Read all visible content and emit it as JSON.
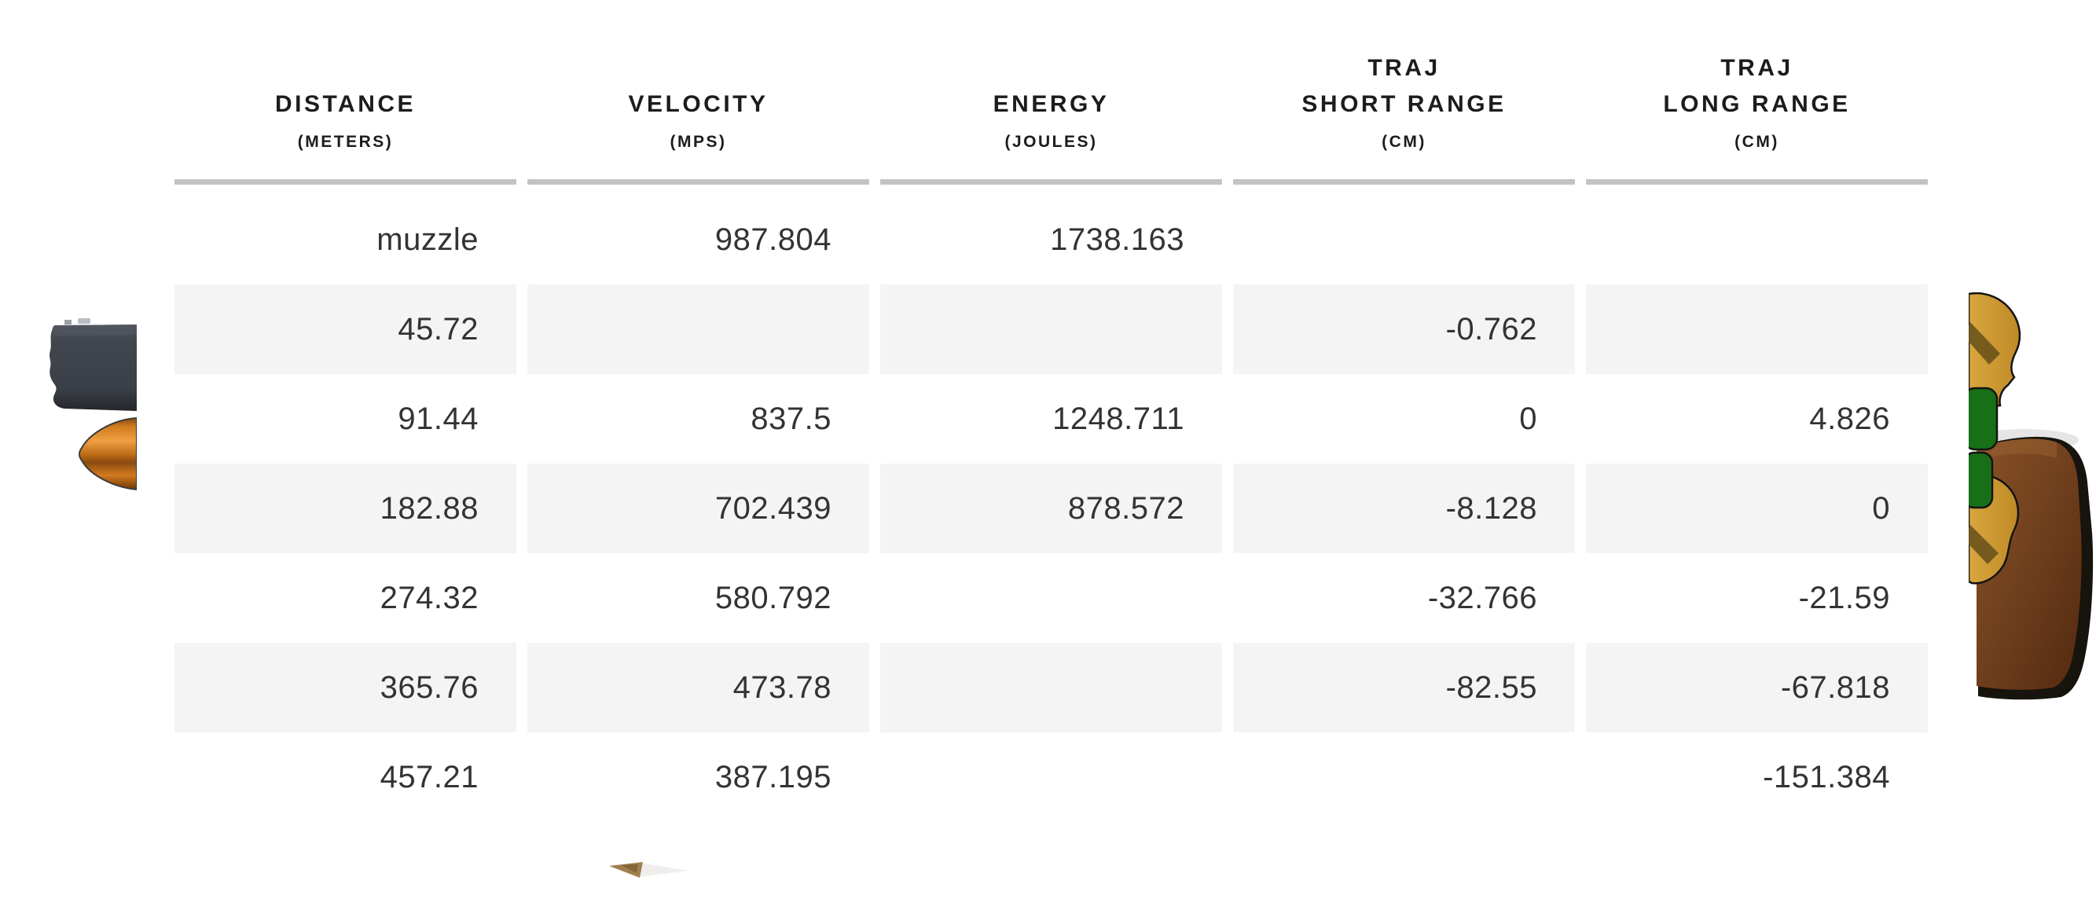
{
  "table": {
    "columns": [
      {
        "key": "distance",
        "lines": [
          "DISTANCE"
        ],
        "unit": "(METERS)"
      },
      {
        "key": "velocity",
        "lines": [
          "VELOCITY"
        ],
        "unit": "(MPS)"
      },
      {
        "key": "energy",
        "lines": [
          "ENERGY"
        ],
        "unit": "(JOULES)"
      },
      {
        "key": "traj-short-range",
        "lines": [
          "TRAJ",
          "SHORT RANGE"
        ],
        "unit": "(CM)"
      },
      {
        "key": "traj-long-range",
        "lines": [
          "TRAJ",
          "LONG RANGE"
        ],
        "unit": "(CM)"
      }
    ],
    "rows": [
      {
        "shaded": false,
        "cells": [
          "muzzle",
          "987.804",
          "1738.163",
          "",
          ""
        ]
      },
      {
        "shaded": true,
        "cells": [
          "45.72",
          "",
          "",
          "-0.762",
          ""
        ]
      },
      {
        "shaded": false,
        "cells": [
          "91.44",
          "837.5",
          "1248.711",
          "0",
          "4.826"
        ]
      },
      {
        "shaded": true,
        "cells": [
          "182.88",
          "702.439",
          "878.572",
          "-8.128",
          "0"
        ]
      },
      {
        "shaded": false,
        "cells": [
          "274.32",
          "580.792",
          "",
          "-32.766",
          "-21.59"
        ]
      },
      {
        "shaded": true,
        "cells": [
          "365.76",
          "473.78",
          "",
          "-82.55",
          "-67.818"
        ]
      },
      {
        "shaded": false,
        "cells": [
          "457.21",
          "387.195",
          "",
          "",
          "-151.384"
        ]
      }
    ]
  },
  "colors": {
    "row_shade": "#f4f4f4",
    "header_rule": "#c3c3c3",
    "data_text": "#333333",
    "header_text": "#1c1c1c"
  },
  "decor": {
    "fragments": [
      "rifle-receiver-fragment",
      "orange-forend-tip-fragment",
      "gold-badge-fragment",
      "rifle-stock-fragment",
      "bottom-sliver-fragment"
    ]
  }
}
